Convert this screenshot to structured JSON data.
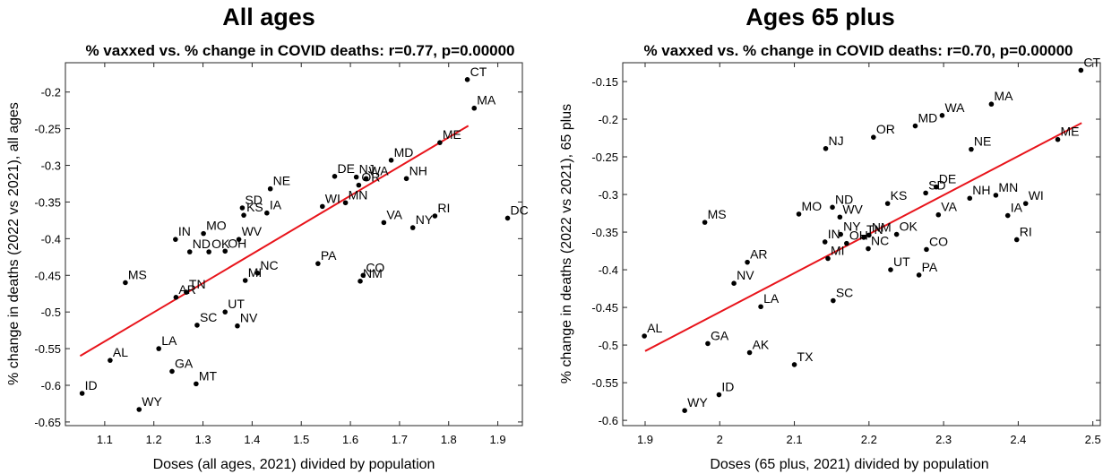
{
  "figure": {
    "panels": [
      {
        "heading": "All ages"
      },
      {
        "heading": "Ages 65 plus"
      }
    ]
  },
  "chart_data": [
    {
      "type": "scatter",
      "title": "% vaxxed vs. % change in COVID deaths: r=0.77, p=0.00000",
      "xlabel": "Doses (all ages, 2021) divided by population",
      "ylabel": "% change in deaths (2022 vs 2021), all ages",
      "xlim": [
        1.02,
        1.95
      ],
      "ylim": [
        -0.655,
        -0.16
      ],
      "xticks": [
        1.1,
        1.2,
        1.3,
        1.4,
        1.5,
        1.6,
        1.7,
        1.8,
        1.9
      ],
      "xtick_labels": [
        "1.1",
        "1.2",
        "1.3",
        "1.4",
        "1.5",
        "1.6",
        "1.7",
        "1.8",
        "1.9"
      ],
      "yticks": [
        -0.65,
        -0.6,
        -0.55,
        -0.5,
        -0.45,
        -0.4,
        -0.35,
        -0.3,
        -0.25,
        -0.2
      ],
      "ytick_labels": [
        "-0.65",
        "-0.6",
        "-0.55",
        "-0.5",
        "-0.45",
        "-0.4",
        "-0.35",
        "-0.3",
        "-0.25",
        "-0.2"
      ],
      "grid": false,
      "point_color": "#000000",
      "fit_line": {
        "x": [
          1.05,
          1.84
        ],
        "y": [
          -0.56,
          -0.246
        ],
        "color": "#e8141b"
      },
      "points": [
        {
          "label": "CT",
          "x": 1.838,
          "y": -0.183
        },
        {
          "label": "MA",
          "x": 1.852,
          "y": -0.222
        },
        {
          "label": "ME",
          "x": 1.782,
          "y": -0.269
        },
        {
          "label": "MD",
          "x": 1.683,
          "y": -0.293
        },
        {
          "label": "NH",
          "x": 1.714,
          "y": -0.318
        },
        {
          "label": "DE",
          "x": 1.568,
          "y": -0.315
        },
        {
          "label": "NJ",
          "x": 1.612,
          "y": -0.316
        },
        {
          "label": "WA",
          "x": 1.632,
          "y": -0.318
        },
        {
          "label": "OR",
          "x": 1.617,
          "y": -0.327
        },
        {
          "label": "WI",
          "x": 1.543,
          "y": -0.356
        },
        {
          "label": "MN",
          "x": 1.59,
          "y": -0.351
        },
        {
          "label": "NE",
          "x": 1.437,
          "y": -0.332
        },
        {
          "label": "SD",
          "x": 1.38,
          "y": -0.358
        },
        {
          "label": "KS",
          "x": 1.383,
          "y": -0.368
        },
        {
          "label": "IA",
          "x": 1.43,
          "y": -0.365
        },
        {
          "label": "VA",
          "x": 1.668,
          "y": -0.378
        },
        {
          "label": "NY",
          "x": 1.727,
          "y": -0.385
        },
        {
          "label": "RI",
          "x": 1.772,
          "y": -0.369
        },
        {
          "label": "DC",
          "x": 1.92,
          "y": -0.372
        },
        {
          "label": "IN",
          "x": 1.244,
          "y": -0.401
        },
        {
          "label": "MO",
          "x": 1.301,
          "y": -0.393
        },
        {
          "label": "WV",
          "x": 1.373,
          "y": -0.401
        },
        {
          "label": "ND",
          "x": 1.273,
          "y": -0.418
        },
        {
          "label": "OK",
          "x": 1.312,
          "y": -0.418
        },
        {
          "label": "OH",
          "x": 1.345,
          "y": -0.417
        },
        {
          "label": "PA",
          "x": 1.534,
          "y": -0.434
        },
        {
          "label": "MI",
          "x": 1.386,
          "y": -0.457
        },
        {
          "label": "NC",
          "x": 1.411,
          "y": -0.447
        },
        {
          "label": "CO",
          "x": 1.626,
          "y": -0.45
        },
        {
          "label": "NM",
          "x": 1.62,
          "y": -0.458
        },
        {
          "label": "MS",
          "x": 1.142,
          "y": -0.46
        },
        {
          "label": "AR",
          "x": 1.245,
          "y": -0.48
        },
        {
          "label": "TN",
          "x": 1.266,
          "y": -0.473
        },
        {
          "label": "UT",
          "x": 1.345,
          "y": -0.5
        },
        {
          "label": "SC",
          "x": 1.288,
          "y": -0.518
        },
        {
          "label": "NV",
          "x": 1.37,
          "y": -0.519
        },
        {
          "label": "LA",
          "x": 1.21,
          "y": -0.55
        },
        {
          "label": "AL",
          "x": 1.111,
          "y": -0.566
        },
        {
          "label": "GA",
          "x": 1.237,
          "y": -0.581
        },
        {
          "label": "MT",
          "x": 1.286,
          "y": -0.598
        },
        {
          "label": "ID",
          "x": 1.054,
          "y": -0.611
        },
        {
          "label": "WY",
          "x": 1.17,
          "y": -0.633
        }
      ]
    },
    {
      "type": "scatter",
      "title": "% vaxxed vs. % change in COVID deaths: r=0.70, p=0.00000",
      "xlabel": "Doses (65 plus, 2021) divided by population",
      "ylabel": "% change in deaths (2022 vs 2021), 65 plus",
      "xlim": [
        1.87,
        2.51
      ],
      "ylim": [
        -0.607,
        -0.125
      ],
      "xticks": [
        1.9,
        2.0,
        2.1,
        2.2,
        2.3,
        2.4,
        2.5
      ],
      "xtick_labels": [
        "1.9",
        "2",
        "2.1",
        "2.2",
        "2.3",
        "2.4",
        "2.5"
      ],
      "yticks": [
        -0.6,
        -0.55,
        -0.5,
        -0.45,
        -0.4,
        -0.35,
        -0.3,
        -0.25,
        -0.2,
        -0.15
      ],
      "ytick_labels": [
        "-0.6",
        "-0.55",
        "-0.5",
        "-0.45",
        "-0.4",
        "-0.35",
        "-0.3",
        "-0.25",
        "-0.2",
        "-0.15"
      ],
      "grid": false,
      "point_color": "#000000",
      "fit_line": {
        "x": [
          1.9,
          2.485
        ],
        "y": [
          -0.508,
          -0.205
        ],
        "color": "#e8141b"
      },
      "points": [
        {
          "label": "CT",
          "x": 2.484,
          "y": -0.135
        },
        {
          "label": "MA",
          "x": 2.364,
          "y": -0.18
        },
        {
          "label": "WA",
          "x": 2.298,
          "y": -0.195
        },
        {
          "label": "MD",
          "x": 2.262,
          "y": -0.209
        },
        {
          "label": "OR",
          "x": 2.206,
          "y": -0.224
        },
        {
          "label": "NJ",
          "x": 2.142,
          "y": -0.239
        },
        {
          "label": "NE",
          "x": 2.337,
          "y": -0.24
        },
        {
          "label": "ME",
          "x": 2.453,
          "y": -0.227
        },
        {
          "label": "DE",
          "x": 2.29,
          "y": -0.29
        },
        {
          "label": "SD",
          "x": 2.276,
          "y": -0.298
        },
        {
          "label": "KS",
          "x": 2.225,
          "y": -0.312
        },
        {
          "label": "NH",
          "x": 2.335,
          "y": -0.305
        },
        {
          "label": "MN",
          "x": 2.37,
          "y": -0.301
        },
        {
          "label": "WI",
          "x": 2.41,
          "y": -0.312
        },
        {
          "label": "IA",
          "x": 2.386,
          "y": -0.328
        },
        {
          "label": "VA",
          "x": 2.293,
          "y": -0.327
        },
        {
          "label": "RI",
          "x": 2.398,
          "y": -0.36
        },
        {
          "label": "MO",
          "x": 2.106,
          "y": -0.326
        },
        {
          "label": "ND",
          "x": 2.151,
          "y": -0.317
        },
        {
          "label": "WV",
          "x": 2.161,
          "y": -0.33
        },
        {
          "label": "MS",
          "x": 1.98,
          "y": -0.337
        },
        {
          "label": "IN",
          "x": 2.141,
          "y": -0.363
        },
        {
          "label": "NY",
          "x": 2.162,
          "y": -0.353
        },
        {
          "label": "TN",
          "x": 2.193,
          "y": -0.357
        },
        {
          "label": "NM",
          "x": 2.2,
          "y": -0.354
        },
        {
          "label": "OK",
          "x": 2.237,
          "y": -0.353
        },
        {
          "label": "OH",
          "x": 2.17,
          "y": -0.365
        },
        {
          "label": "NC",
          "x": 2.199,
          "y": -0.372
        },
        {
          "label": "CO",
          "x": 2.277,
          "y": -0.373
        },
        {
          "label": "MI",
          "x": 2.145,
          "y": -0.385
        },
        {
          "label": "UT",
          "x": 2.229,
          "y": -0.4
        },
        {
          "label": "PA",
          "x": 2.267,
          "y": -0.407
        },
        {
          "label": "AR",
          "x": 2.037,
          "y": -0.39
        },
        {
          "label": "NV",
          "x": 2.019,
          "y": -0.418
        },
        {
          "label": "SC",
          "x": 2.152,
          "y": -0.441
        },
        {
          "label": "LA",
          "x": 2.055,
          "y": -0.449
        },
        {
          "label": "AL",
          "x": 1.899,
          "y": -0.488
        },
        {
          "label": "GA",
          "x": 1.984,
          "y": -0.498
        },
        {
          "label": "AK",
          "x": 2.04,
          "y": -0.51
        },
        {
          "label": "TX",
          "x": 2.1,
          "y": -0.526
        },
        {
          "label": "ID",
          "x": 1.999,
          "y": -0.566
        },
        {
          "label": "WY",
          "x": 1.953,
          "y": -0.587
        }
      ]
    }
  ]
}
